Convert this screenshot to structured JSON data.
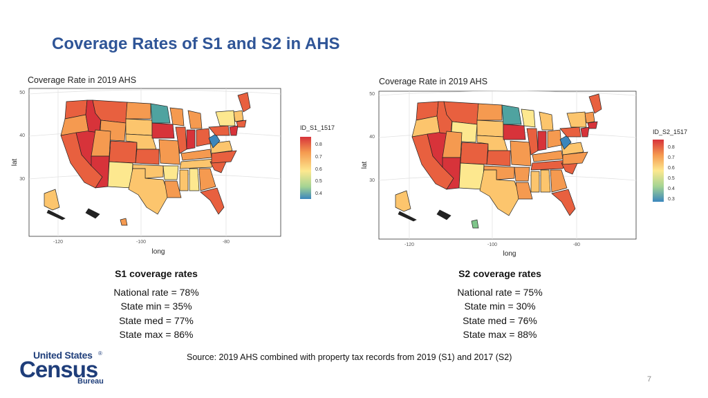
{
  "slide": {
    "title": "Coverage Rates of S1 and S2 in AHS",
    "source": "Source: 2019 AHS combined with property tax records from 2019 (S1) and 2017 (S2)",
    "page_number": "7"
  },
  "logo": {
    "line1": "United States",
    "line2": "Census",
    "line3": "Bureau",
    "mark": "®"
  },
  "maps": [
    {
      "title": "Coverage Rate in 2019 AHS",
      "xlabel": "long",
      "ylabel": "lat",
      "x_ticks": [
        "-120",
        "-100",
        "-80"
      ],
      "y_ticks": [
        "50",
        "40",
        "30"
      ],
      "legend_title": "ID_S1_1517",
      "legend_ticks": [
        "0.8",
        "0.7",
        "0.6",
        "0.5",
        "0.4"
      ]
    },
    {
      "title": "Coverage Rate in 2019 AHS",
      "xlabel": "long",
      "ylabel": "lat",
      "x_ticks": [
        "-120",
        "-100",
        "-80"
      ],
      "y_ticks": [
        "50",
        "40",
        "30"
      ],
      "legend_title": "ID_S2_1517",
      "legend_ticks": [
        "0.8",
        "0.7",
        "0.6",
        "0.5",
        "0.4",
        "0.3"
      ]
    }
  ],
  "stats": [
    {
      "title": "S1 coverage rates",
      "national": "National rate = 78%",
      "min": "State min = 35%",
      "med": "State med = 77%",
      "max": "State max = 86%"
    },
    {
      "title": "S2 coverage rates",
      "national": "National rate = 75%",
      "min": "State min = 30%",
      "med": "State med = 76%",
      "max": "State max = 88%"
    }
  ],
  "colors": {
    "title": "#2f5597",
    "red": "#d7333a",
    "orange_red": "#e8603f",
    "orange": "#f59a50",
    "light_orange": "#fcc56d",
    "yellow": "#fde88f",
    "green": "#7fc58a",
    "teal": "#4fa3a0",
    "blue": "#3b86bc"
  }
}
